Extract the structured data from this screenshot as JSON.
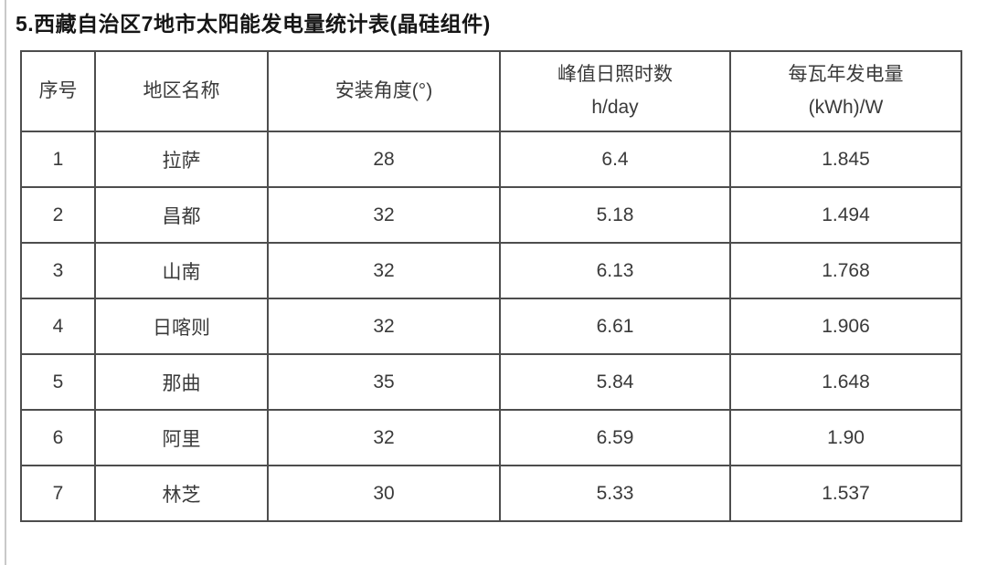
{
  "page": {
    "title": "5.西藏自治区7地市太阳能发电量统计表(晶硅组件)"
  },
  "table": {
    "columns": [
      {
        "label": "序号",
        "sub": ""
      },
      {
        "label": "地区名称",
        "sub": ""
      },
      {
        "label": "安装角度(°)",
        "sub": ""
      },
      {
        "label": "峰值日照时数",
        "sub": "h/day"
      },
      {
        "label": "每瓦年发电量",
        "sub": "(kWh)/W"
      }
    ],
    "rows": [
      {
        "no": "1",
        "region": "拉萨",
        "angle": "28",
        "peak_sun_hours": "6.4",
        "annual_energy_per_watt": "1.845"
      },
      {
        "no": "2",
        "region": "昌都",
        "angle": "32",
        "peak_sun_hours": "5.18",
        "annual_energy_per_watt": "1.494"
      },
      {
        "no": "3",
        "region": "山南",
        "angle": "32",
        "peak_sun_hours": "6.13",
        "annual_energy_per_watt": "1.768"
      },
      {
        "no": "4",
        "region": "日喀则",
        "angle": "32",
        "peak_sun_hours": "6.61",
        "annual_energy_per_watt": "1.906"
      },
      {
        "no": "5",
        "region": "那曲",
        "angle": "35",
        "peak_sun_hours": "5.84",
        "annual_energy_per_watt": "1.648"
      },
      {
        "no": "6",
        "region": "阿里",
        "angle": "32",
        "peak_sun_hours": "6.59",
        "annual_energy_per_watt": "1.90"
      },
      {
        "no": "7",
        "region": "林芝",
        "angle": "30",
        "peak_sun_hours": "5.33",
        "annual_energy_per_watt": "1.537"
      }
    ]
  },
  "colors": {
    "border": "#4d4d4d",
    "text": "#3a3a3a",
    "title_text": "#161616"
  }
}
